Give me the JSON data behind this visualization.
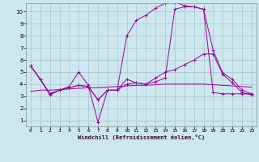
{
  "xlabel": "Windchill (Refroidissement éolien,°C)",
  "background_color": "#cce8ee",
  "grid_color": "#aac4d0",
  "line_color": "#990099",
  "x_ticks": [
    0,
    1,
    2,
    3,
    4,
    5,
    6,
    7,
    8,
    9,
    10,
    11,
    12,
    13,
    14,
    15,
    16,
    17,
    18,
    19,
    20,
    21,
    22,
    23
  ],
  "y_ticks": [
    1,
    2,
    3,
    4,
    5,
    6,
    7,
    8,
    9,
    10
  ],
  "xlim": [
    -0.5,
    23.5
  ],
  "ylim": [
    0.5,
    10.7
  ],
  "series": [
    [
      5.5,
      4.4,
      3.1,
      3.5,
      3.8,
      5.0,
      3.9,
      0.85,
      3.5,
      3.5,
      4.4,
      4.1,
      4.0,
      4.5,
      5.0,
      5.2,
      5.6,
      6.0,
      6.5,
      6.5,
      4.8,
      4.1,
      3.3,
      3.1
    ],
    [
      5.5,
      4.4,
      3.2,
      3.5,
      3.7,
      3.9,
      3.8,
      2.7,
      3.5,
      3.5,
      4.0,
      4.1,
      4.0,
      4.2,
      4.5,
      10.2,
      10.4,
      10.4,
      10.2,
      3.3,
      3.2,
      3.2,
      3.2,
      3.2
    ],
    [
      5.5,
      4.4,
      3.2,
      3.5,
      3.7,
      3.9,
      3.8,
      2.7,
      3.5,
      3.5,
      8.0,
      9.3,
      9.7,
      10.3,
      10.7,
      10.8,
      10.5,
      10.4,
      10.2,
      6.8,
      4.9,
      4.4,
      3.5,
      3.2
    ],
    [
      3.4,
      3.5,
      3.5,
      3.55,
      3.6,
      3.65,
      3.7,
      3.7,
      3.75,
      3.8,
      3.85,
      3.9,
      3.9,
      3.95,
      4.0,
      4.0,
      4.0,
      4.0,
      4.0,
      3.95,
      3.9,
      3.85,
      3.8,
      3.75
    ]
  ],
  "has_markers": [
    true,
    true,
    true,
    false
  ]
}
